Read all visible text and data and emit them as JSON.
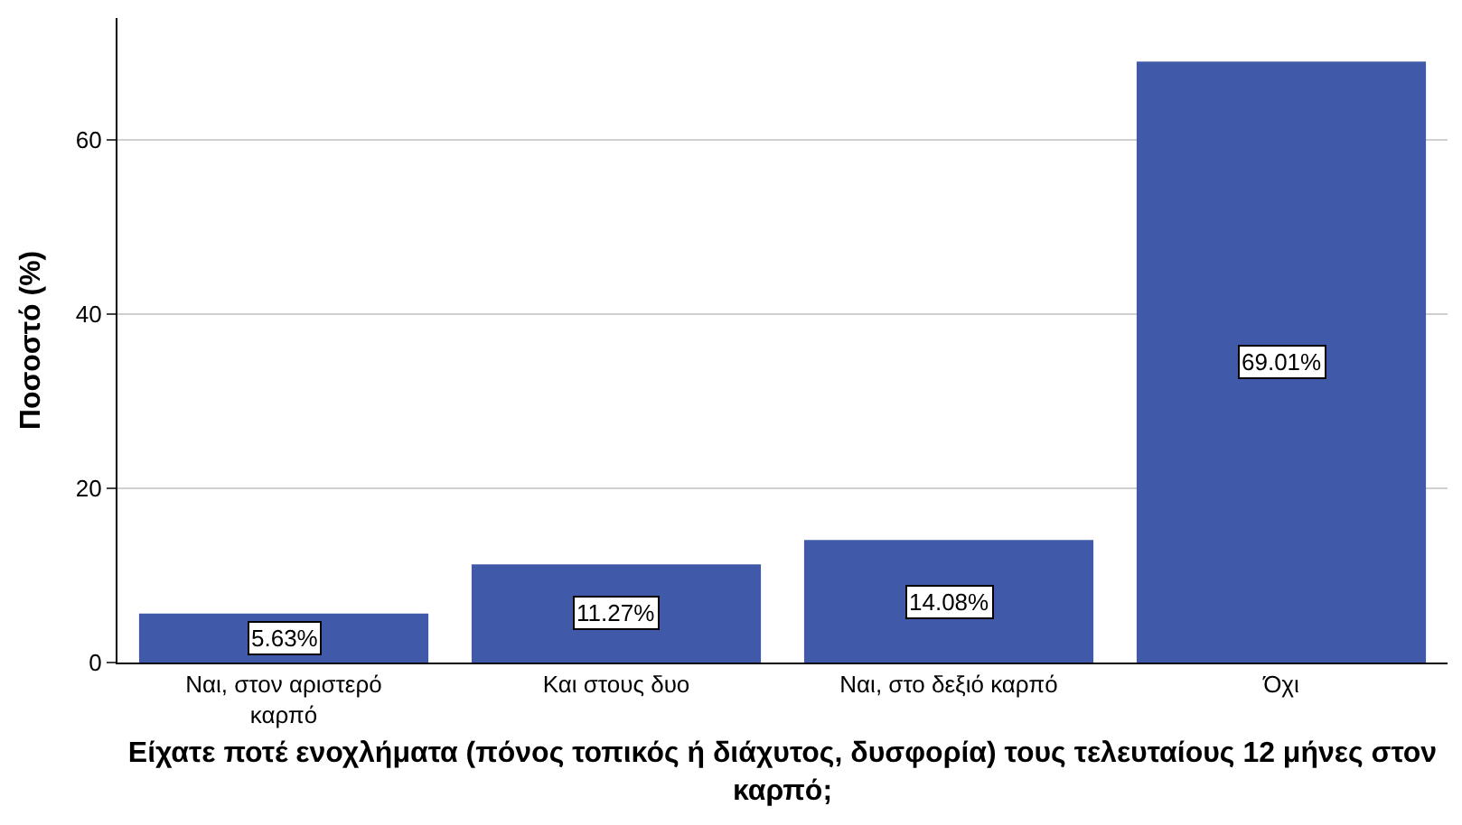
{
  "chart_data": {
    "type": "bar",
    "xlabel": "Είχατε ποτέ ενοχλήματα (πόνος τοπικός ή διάχυτος, δυσφορία) τους τελευταίους 12 μήνες στον καρπό;",
    "ylabel": "Ποσοστό (%)",
    "categories": [
      "Ναι, στον αριστερό καρπό",
      "Και στους δυο",
      "Ναι, στο δεξιό καρπό",
      "Όχι"
    ],
    "values": [
      5.63,
      11.27,
      14.08,
      69.01
    ],
    "value_labels": [
      "5.63%",
      "11.27%",
      "14.08%",
      "69.01%"
    ],
    "color": "#4059a9",
    "ylim": [
      0,
      74
    ],
    "yticks": [
      0,
      20,
      40,
      60
    ],
    "grid": "y",
    "legend": false
  }
}
